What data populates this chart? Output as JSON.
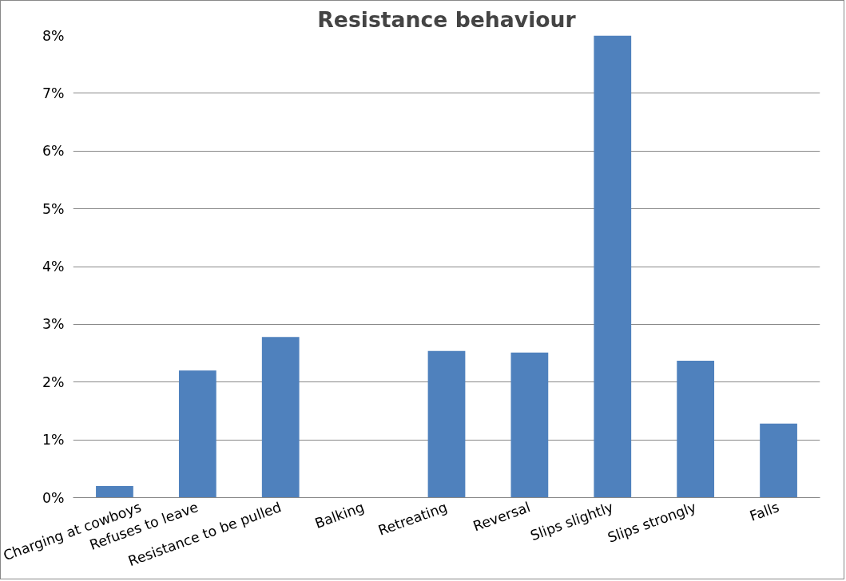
{
  "chart_data": {
    "type": "bar",
    "title": "Resistance behaviour",
    "categories": [
      "Charging at cowboys",
      "Refuses to leave",
      "Resistance to be pulled",
      "Balking",
      "Retreating",
      "Reversal",
      "Slips slightly",
      "Slips strongly",
      "Falls"
    ],
    "values": [
      0.2,
      2.2,
      2.78,
      0,
      2.54,
      2.51,
      8.0,
      2.37,
      1.28
    ],
    "color": "#4f81bd",
    "ylim": [
      0,
      8
    ],
    "yticks": [
      {
        "value": 0,
        "label": "0%"
      },
      {
        "value": 1,
        "label": "1%"
      },
      {
        "value": 2,
        "label": "2%"
      },
      {
        "value": 3,
        "label": "3%"
      },
      {
        "value": 4,
        "label": "4%"
      },
      {
        "value": 5,
        "label": "5%"
      },
      {
        "value": 6,
        "label": "6%"
      },
      {
        "value": 7,
        "label": "7%"
      },
      {
        "value": 8,
        "label": "8%"
      }
    ],
    "grid": "y"
  }
}
